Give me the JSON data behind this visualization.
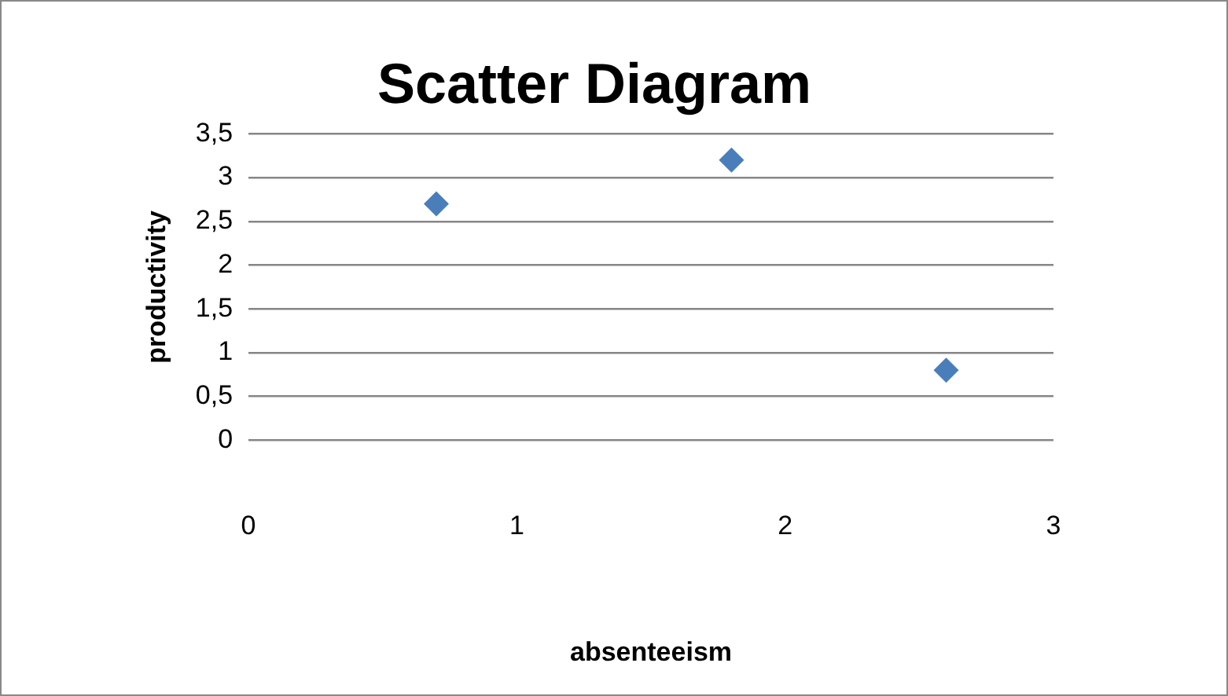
{
  "chart_data": {
    "type": "scatter",
    "title": "Scatter Diagram",
    "xlabel": "absenteeism",
    "ylabel": "productivity",
    "series": [
      {
        "color": "#4a7ebb",
        "x": [
          0.7,
          1.8,
          2.6
        ],
        "values": [
          2.7,
          3.2,
          0.8
        ]
      }
    ],
    "xlim": [
      0,
      3
    ],
    "xticks": [
      0,
      1,
      2,
      3
    ],
    "ylim": [
      0,
      3.5
    ],
    "yticks": [
      0,
      {
        "value": 0.5,
        "label": "0,5"
      },
      1,
      {
        "value": 1.5,
        "label": "1,5"
      },
      2,
      {
        "value": 2.5,
        "label": "2,5"
      },
      3,
      {
        "value": 3.5,
        "label": "3,5"
      }
    ],
    "grid": "y",
    "marker": "diamond"
  }
}
